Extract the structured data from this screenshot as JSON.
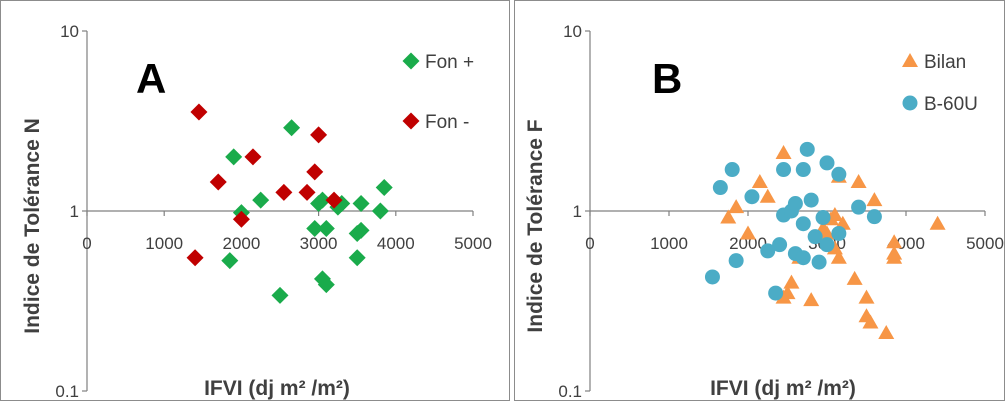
{
  "chart_data": [
    {
      "type": "scatter",
      "panel_letter": "A",
      "xlabel": "IFVI (dj m² /m²)",
      "ylabel": "Indice de Tolérance N",
      "xlim": [
        0,
        5000
      ],
      "ylim": [
        0.1,
        10
      ],
      "y_scale": "log",
      "x_ticks": [
        "0",
        "1000",
        "2000",
        "3000",
        "4000",
        "5000"
      ],
      "y_ticks": [
        "0.1",
        "1",
        "10"
      ],
      "grid": false,
      "legend_position": "top-right",
      "series": [
        {
          "name": "Fon +",
          "color": "#1aab4b",
          "marker": "diamond",
          "points": [
            [
              1900,
              2.0
            ],
            [
              2000,
              0.98
            ],
            [
              2250,
              1.15
            ],
            [
              2650,
              2.9
            ],
            [
              3000,
              1.1
            ],
            [
              3050,
              1.15
            ],
            [
              3250,
              1.05
            ],
            [
              3300,
              1.1
            ],
            [
              3500,
              0.75
            ],
            [
              3550,
              1.1
            ],
            [
              3800,
              1.0
            ],
            [
              3850,
              1.35
            ],
            [
              2950,
              0.8
            ],
            [
              3100,
              0.8
            ],
            [
              3550,
              0.78
            ],
            [
              1850,
              0.53
            ],
            [
              3500,
              0.55
            ],
            [
              3050,
              0.42
            ],
            [
              3100,
              0.39
            ],
            [
              2500,
              0.34
            ]
          ]
        },
        {
          "name": "Fon -",
          "color": "#c00000",
          "marker": "diamond",
          "points": [
            [
              1450,
              3.55
            ],
            [
              1700,
              1.45
            ],
            [
              2150,
              2.0
            ],
            [
              2000,
              0.9
            ],
            [
              1400,
              0.55
            ],
            [
              2550,
              1.27
            ],
            [
              2850,
              1.27
            ],
            [
              2950,
              1.65
            ],
            [
              3000,
              2.65
            ],
            [
              3200,
              1.15
            ]
          ]
        }
      ]
    },
    {
      "type": "scatter",
      "panel_letter": "B",
      "xlabel": "IFVI (dj m² /m²)",
      "ylabel": "Indice de Tolérance F",
      "xlim": [
        0,
        5000
      ],
      "ylim": [
        0.1,
        10
      ],
      "y_scale": "log",
      "x_ticks": [
        "0",
        "1000",
        "2000",
        "3000",
        "4000",
        "5000"
      ],
      "y_ticks": [
        "0.1",
        "1",
        "10"
      ],
      "grid": false,
      "legend_position": "top-right",
      "series": [
        {
          "name": "Bilan",
          "color": "#f79646",
          "marker": "triangle",
          "points": [
            [
              1750,
              0.92
            ],
            [
              1850,
              1.05
            ],
            [
              2000,
              0.75
            ],
            [
              2150,
              1.45
            ],
            [
              2250,
              1.2
            ],
            [
              2450,
              2.1
            ],
            [
              2550,
              0.4
            ],
            [
              2450,
              0.33
            ],
            [
              2500,
              0.35
            ],
            [
              2650,
              0.55
            ],
            [
              2800,
              0.32
            ],
            [
              2950,
              0.8
            ],
            [
              3000,
              0.75
            ],
            [
              3050,
              0.9
            ],
            [
              3100,
              0.95
            ],
            [
              3150,
              1.55
            ],
            [
              3100,
              0.62
            ],
            [
              3150,
              0.55
            ],
            [
              3200,
              0.85
            ],
            [
              3350,
              0.42
            ],
            [
              3400,
              1.45
            ],
            [
              3500,
              0.33
            ],
            [
              3500,
              0.26
            ],
            [
              3550,
              0.24
            ],
            [
              3600,
              1.15
            ],
            [
              3750,
              0.21
            ],
            [
              3850,
              0.67
            ],
            [
              3850,
              0.58
            ],
            [
              3850,
              0.55
            ],
            [
              4400,
              0.85
            ]
          ]
        },
        {
          "name": "B-60U",
          "color": "#4bacc6",
          "marker": "circle",
          "points": [
            [
              1550,
              0.43
            ],
            [
              1650,
              1.35
            ],
            [
              1800,
              1.7
            ],
            [
              1850,
              0.53
            ],
            [
              2050,
              1.2
            ],
            [
              2400,
              0.65
            ],
            [
              2450,
              0.95
            ],
            [
              2550,
              1.0
            ],
            [
              2600,
              1.1
            ],
            [
              2600,
              0.58
            ],
            [
              2700,
              0.55
            ],
            [
              2700,
              0.85
            ],
            [
              2750,
              2.2
            ],
            [
              2800,
              1.15
            ],
            [
              2850,
              0.72
            ],
            [
              2900,
              0.52
            ],
            [
              2950,
              0.92
            ],
            [
              3000,
              1.85
            ],
            [
              3000,
              0.65
            ],
            [
              3150,
              1.6
            ],
            [
              3150,
              0.75
            ],
            [
              3400,
              1.05
            ],
            [
              3600,
              0.93
            ],
            [
              2350,
              0.35
            ],
            [
              2450,
              1.7
            ],
            [
              2700,
              1.7
            ],
            [
              2250,
              0.6
            ]
          ]
        }
      ]
    }
  ]
}
